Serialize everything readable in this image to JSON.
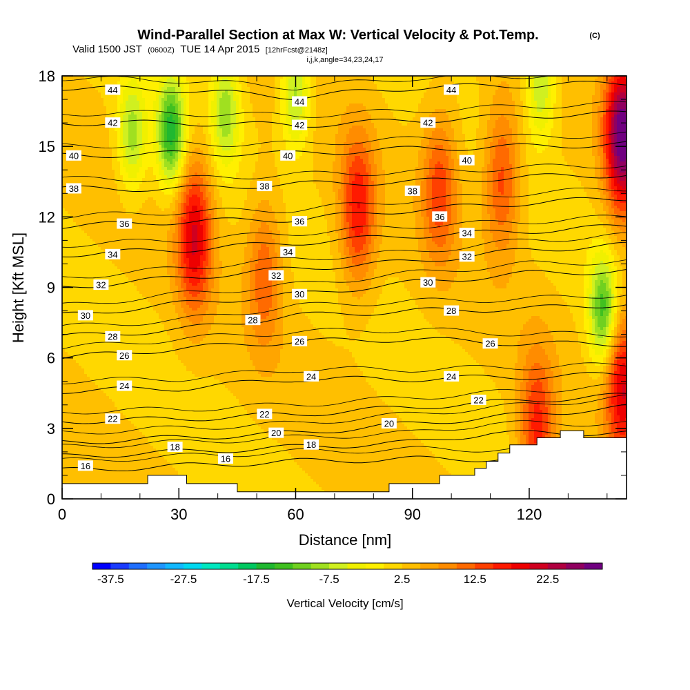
{
  "header": {
    "title": "Wind-Parallel Section at Max W: Vertical Velocity & Pot.Temp.",
    "copyright": "(C)",
    "valid_prefix": "Valid 1500 JST",
    "valid_utc": "(0600Z)",
    "valid_date": "TUE 14 Apr 2015",
    "forecast": "[12hrFcst@2148z]",
    "indices": "i,j,k,angle=34,23,24,17"
  },
  "chart_data": {
    "type": "heatmap",
    "xlabel": "Distance [nm]",
    "ylabel": "Height [Kft MSL]",
    "xlim": [
      0,
      145
    ],
    "ylim": [
      0,
      18
    ],
    "x_ticks": [
      "0",
      "30",
      "60",
      "90",
      "120"
    ],
    "y_ticks": [
      "0",
      "3",
      "6",
      "9",
      "12",
      "15",
      "18"
    ],
    "colorbar": {
      "label": "Vertical Velocity [cm/s]",
      "ticks": [
        "-37.5",
        "-27.5",
        "-17.5",
        "-7.5",
        "2.5",
        "12.5",
        "22.5"
      ],
      "levels": [
        -40,
        -37.5,
        -35,
        -32.5,
        -30,
        -27.5,
        -25,
        -22.5,
        -20,
        -17.5,
        -15,
        -12.5,
        -10,
        -7.5,
        -5,
        -2.5,
        0,
        2.5,
        5,
        7.5,
        10,
        12.5,
        15,
        17.5,
        20,
        22.5,
        25,
        27.5,
        30
      ],
      "colors": [
        "#0000ff",
        "#1a3cff",
        "#1f6fff",
        "#1f96ff",
        "#12b8ff",
        "#00d8f0",
        "#00e8c0",
        "#00dd90",
        "#00c860",
        "#20b830",
        "#40c020",
        "#70d020",
        "#a0e020",
        "#d0f020",
        "#f0f000",
        "#fff000",
        "#ffd800",
        "#ffbf00",
        "#ffa500",
        "#ff8c00",
        "#ff6a00",
        "#ff4000",
        "#ff1a00",
        "#ee0000",
        "#d00020",
        "#b00040",
        "#900060",
        "#700080"
      ]
    },
    "features": [
      {
        "kind": "updraft",
        "x": 34,
        "y": 11.2,
        "peak": 20
      },
      {
        "kind": "updraft",
        "x": 76,
        "y": 12.3,
        "peak": 17
      },
      {
        "kind": "updraft",
        "x": 52,
        "y": 9.6,
        "peak": 12
      },
      {
        "kind": "updraft",
        "x": 97,
        "y": 13.2,
        "peak": 14
      },
      {
        "kind": "updraft",
        "x": 113,
        "y": 13.6,
        "peak": 14
      },
      {
        "kind": "updraft",
        "x": 144,
        "y": 15.5,
        "peak": 30
      },
      {
        "kind": "updraft",
        "x": 122,
        "y": 3.0,
        "peak": 16
      },
      {
        "kind": "updraft",
        "x": 144,
        "y": 4.8,
        "peak": 20
      },
      {
        "kind": "downdraft",
        "x": 28,
        "y": 15.6,
        "peak": -16
      },
      {
        "kind": "downdraft",
        "x": 18,
        "y": 15.5,
        "peak": -9
      },
      {
        "kind": "downdraft",
        "x": 42,
        "y": 16.5,
        "peak": -9
      },
      {
        "kind": "downdraft",
        "x": 60,
        "y": 17.2,
        "peak": -9
      },
      {
        "kind": "downdraft",
        "x": 139,
        "y": 8.0,
        "peak": -14
      },
      {
        "kind": "downdraft",
        "x": 123,
        "y": 17.6,
        "peak": -8
      }
    ],
    "isentropes": {
      "series": [
        {
          "name": "16",
          "values": [
            [
              0,
              1.2
            ],
            [
              30,
              1.4
            ],
            [
              60,
              1.6
            ],
            [
              90,
              1.7
            ]
          ]
        },
        {
          "name": "18",
          "values": [
            [
              0,
              1.8
            ],
            [
              30,
              2.0
            ],
            [
              60,
              2.2
            ],
            [
              90,
              2.4
            ],
            [
              110,
              2.8
            ]
          ]
        },
        {
          "name": "20",
          "values": [
            [
              0,
              2.4
            ],
            [
              30,
              2.6
            ],
            [
              60,
              2.8
            ],
            [
              90,
              3.2
            ],
            [
              120,
              3.6
            ],
            [
              145,
              3.9
            ]
          ]
        },
        {
          "name": "22",
          "values": [
            [
              0,
              3.3
            ],
            [
              30,
              3.4
            ],
            [
              60,
              3.6
            ],
            [
              90,
              3.9
            ],
            [
              120,
              4.2
            ],
            [
              145,
              4.4
            ]
          ]
        },
        {
          "name": "24",
          "values": [
            [
              0,
              4.6
            ],
            [
              30,
              4.7
            ],
            [
              60,
              5.1
            ],
            [
              90,
              5.1
            ],
            [
              120,
              5.2
            ],
            [
              145,
              5.3
            ]
          ]
        },
        {
          "name": "26",
          "values": [
            [
              0,
              6.0
            ],
            [
              30,
              6.4
            ],
            [
              60,
              6.7
            ],
            [
              90,
              6.8
            ],
            [
              120,
              6.6
            ],
            [
              145,
              6.6
            ]
          ]
        },
        {
          "name": "28",
          "values": [
            [
              0,
              6.9
            ],
            [
              30,
              7.2
            ],
            [
              60,
              7.8
            ],
            [
              90,
              8.0
            ],
            [
              120,
              8.1
            ],
            [
              145,
              8.3
            ]
          ]
        },
        {
          "name": "30",
          "values": [
            [
              0,
              7.8
            ],
            [
              30,
              8.3
            ],
            [
              60,
              8.7
            ],
            [
              90,
              9.2
            ],
            [
              120,
              9.6
            ],
            [
              145,
              9.7
            ]
          ]
        },
        {
          "name": "32",
          "values": [
            [
              0,
              9.0
            ],
            [
              30,
              9.4
            ],
            [
              60,
              9.8
            ],
            [
              90,
              10.1
            ],
            [
              120,
              10.6
            ],
            [
              145,
              10.8
            ]
          ]
        },
        {
          "name": "34",
          "values": [
            [
              0,
              10.4
            ],
            [
              30,
              10.6
            ],
            [
              60,
              10.9
            ],
            [
              90,
              11.2
            ],
            [
              120,
              11.4
            ],
            [
              145,
              11.6
            ]
          ]
        },
        {
          "name": "36",
          "values": [
            [
              0,
              11.6
            ],
            [
              30,
              11.8
            ],
            [
              60,
              11.9
            ],
            [
              90,
              12.3
            ],
            [
              120,
              12.6
            ],
            [
              145,
              12.8
            ]
          ]
        },
        {
          "name": "38",
          "values": [
            [
              0,
              13.2
            ],
            [
              30,
              13.2
            ],
            [
              60,
              13.4
            ],
            [
              90,
              13.5
            ],
            [
              120,
              13.7
            ],
            [
              145,
              13.8
            ]
          ]
        },
        {
          "name": "40",
          "values": [
            [
              0,
              14.6
            ],
            [
              30,
              14.7
            ],
            [
              60,
              14.7
            ],
            [
              90,
              14.9
            ],
            [
              120,
              15.0
            ],
            [
              145,
              15.1
            ]
          ]
        },
        {
          "name": "42",
          "values": [
            [
              0,
              16.0
            ],
            [
              30,
              16.0
            ],
            [
              60,
              15.9
            ],
            [
              90,
              16.1
            ],
            [
              120,
              16.3
            ],
            [
              145,
              16.4
            ]
          ]
        },
        {
          "name": "44",
          "values": [
            [
              0,
              17.5
            ],
            [
              30,
              17.4
            ],
            [
              60,
              17.1
            ],
            [
              90,
              17.5
            ],
            [
              120,
              17.6
            ],
            [
              145,
              17.7
            ]
          ]
        }
      ],
      "labels": [
        {
          "text": "44",
          "x": 13,
          "y": 17.4
        },
        {
          "text": "44",
          "x": 61,
          "y": 16.9
        },
        {
          "text": "44",
          "x": 100,
          "y": 17.4
        },
        {
          "text": "42",
          "x": 13,
          "y": 16.0
        },
        {
          "text": "42",
          "x": 61,
          "y": 15.9
        },
        {
          "text": "42",
          "x": 94,
          "y": 16.0
        },
        {
          "text": "40",
          "x": 3,
          "y": 14.6
        },
        {
          "text": "40",
          "x": 58,
          "y": 14.6
        },
        {
          "text": "40",
          "x": 104,
          "y": 14.4
        },
        {
          "text": "38",
          "x": 3,
          "y": 13.2
        },
        {
          "text": "38",
          "x": 52,
          "y": 13.3
        },
        {
          "text": "38",
          "x": 90,
          "y": 13.1
        },
        {
          "text": "36",
          "x": 16,
          "y": 11.7
        },
        {
          "text": "36",
          "x": 61,
          "y": 11.8
        },
        {
          "text": "36",
          "x": 97,
          "y": 12.0
        },
        {
          "text": "34",
          "x": 13,
          "y": 10.4
        },
        {
          "text": "34",
          "x": 58,
          "y": 10.5
        },
        {
          "text": "34",
          "x": 104,
          "y": 11.3
        },
        {
          "text": "32",
          "x": 10,
          "y": 9.1
        },
        {
          "text": "32",
          "x": 55,
          "y": 9.5
        },
        {
          "text": "32",
          "x": 104,
          "y": 10.3
        },
        {
          "text": "30",
          "x": 6,
          "y": 7.8
        },
        {
          "text": "30",
          "x": 61,
          "y": 8.7
        },
        {
          "text": "30",
          "x": 94,
          "y": 9.2
        },
        {
          "text": "28",
          "x": 13,
          "y": 6.9
        },
        {
          "text": "28",
          "x": 49,
          "y": 7.6
        },
        {
          "text": "28",
          "x": 100,
          "y": 8.0
        },
        {
          "text": "26",
          "x": 16,
          "y": 6.1
        },
        {
          "text": "26",
          "x": 61,
          "y": 6.7
        },
        {
          "text": "26",
          "x": 110,
          "y": 6.6
        },
        {
          "text": "24",
          "x": 16,
          "y": 4.8
        },
        {
          "text": "24",
          "x": 64,
          "y": 5.2
        },
        {
          "text": "24",
          "x": 100,
          "y": 5.2
        },
        {
          "text": "22",
          "x": 13,
          "y": 3.4
        },
        {
          "text": "22",
          "x": 52,
          "y": 3.6
        },
        {
          "text": "22",
          "x": 107,
          "y": 4.2
        },
        {
          "text": "20",
          "x": 55,
          "y": 2.8
        },
        {
          "text": "20",
          "x": 84,
          "y": 3.2
        },
        {
          "text": "18",
          "x": 29,
          "y": 2.2
        },
        {
          "text": "18",
          "x": 64,
          "y": 2.3
        },
        {
          "text": "16",
          "x": 6,
          "y": 1.4
        },
        {
          "text": "16",
          "x": 42,
          "y": 1.7
        }
      ]
    },
    "terrain_kft": [
      [
        0,
        0.65
      ],
      [
        22,
        0.65
      ],
      [
        22,
        1.0
      ],
      [
        32,
        1.0
      ],
      [
        32,
        0.65
      ],
      [
        45,
        0.65
      ],
      [
        45,
        0.3
      ],
      [
        84,
        0.3
      ],
      [
        84,
        0.65
      ],
      [
        97,
        0.65
      ],
      [
        97,
        1.0
      ],
      [
        106,
        1.0
      ],
      [
        106,
        1.3
      ],
      [
        109,
        1.3
      ],
      [
        109,
        1.6
      ],
      [
        112,
        1.6
      ],
      [
        112,
        1.95
      ],
      [
        115,
        1.95
      ],
      [
        115,
        2.3
      ],
      [
        122,
        2.3
      ],
      [
        122,
        2.6
      ],
      [
        128,
        2.6
      ],
      [
        128,
        2.9
      ],
      [
        134,
        2.9
      ],
      [
        134,
        2.6
      ],
      [
        145,
        2.6
      ]
    ]
  }
}
